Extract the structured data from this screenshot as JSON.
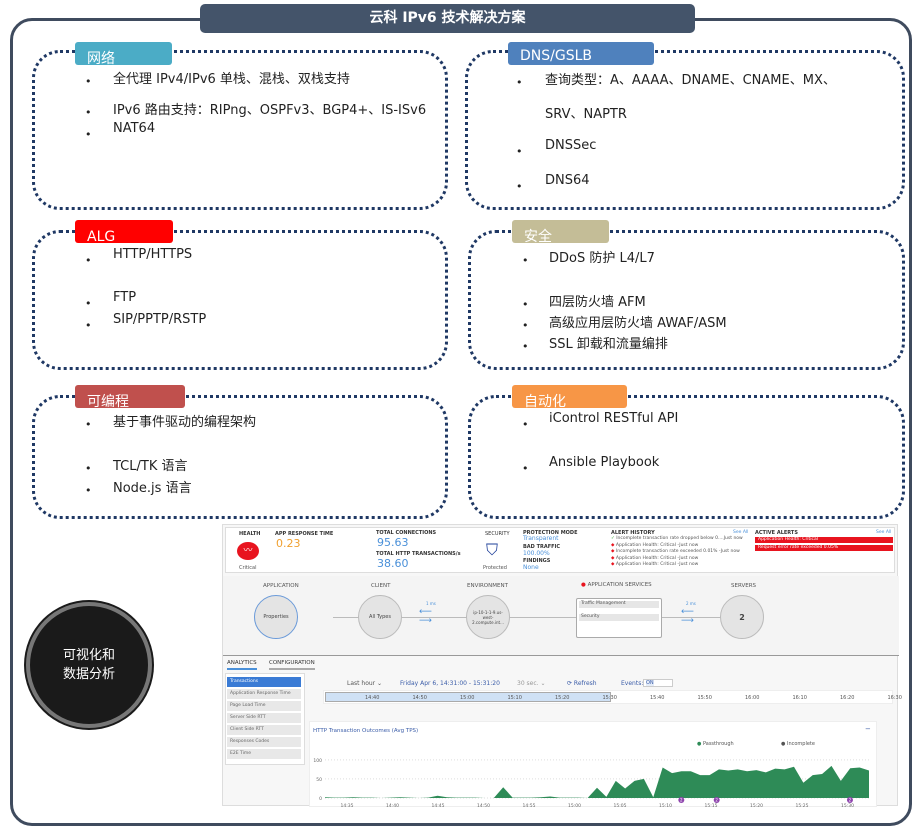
{
  "title": "云科 IPv6 技术解决方案",
  "panels": {
    "network": {
      "tag": "网络",
      "color": "#4bacc6",
      "items": [
        "全代理 IPv4/IPv6 单栈、混栈、双栈支持",
        "IPv6 路由支持：RIPng、OSPFv3、BGP4+、IS-ISv6",
        "NAT64"
      ]
    },
    "dns": {
      "tag": "DNS/GSLB",
      "color": "#4f81bd",
      "items": [
        "查询类型：A、AAAA、DNAME、CNAME、MX、",
        "SRV、NAPTR",
        "DNSSec",
        "DNS64"
      ]
    },
    "alg": {
      "tag": "ALG",
      "color": "#ff0000",
      "items": [
        "HTTP/HTTPS",
        "FTP",
        "SIP/PPTP/RSTP"
      ]
    },
    "security": {
      "tag": "安全",
      "color": "#c4bd97",
      "items": [
        "DDoS 防护 L4/L7",
        "四层防火墙 AFM",
        "高级应用层防火墙 AWAF/ASM",
        "SSL 卸载和流量编排"
      ]
    },
    "programmable": {
      "tag": "可编程",
      "color": "#c0504d",
      "items": [
        "基于事件驱动的编程架构",
        "TCL/TK 语言",
        "Node.js 语言"
      ]
    },
    "automation": {
      "tag": "自动化",
      "color": "#f79646",
      "items": [
        "iControl RESTful API",
        "Ansible Playbook"
      ]
    }
  },
  "circle_label": "可视化和数据分析",
  "dashboard": {
    "health": {
      "label": "HEALTH",
      "status": "Critical"
    },
    "app_response": {
      "label": "APP RESPONSE TIME",
      "value": "0.23"
    },
    "connections": {
      "label": "TOTAL CONNECTIONS",
      "value": "95.63"
    },
    "http_tx": {
      "label": "TOTAL HTTP TRANSACTIONS/s",
      "value": "38.60"
    },
    "security": {
      "label": "SECURITY",
      "status": "Protected"
    },
    "protection": {
      "mode_label": "PROTECTION MODE",
      "mode": "Transparent",
      "bad_label": "BAD TRAFFIC",
      "bad": "100.00%",
      "findings_label": "FINDINGS",
      "findings": "None"
    },
    "alert_history": {
      "label": "ALERT HISTORY",
      "see_all": "See All",
      "items": [
        "Incomplete transaction rate dropped below 0....Just now",
        "Application Health: Critical -Just now",
        "Incomplete transaction rate exceeded 0.01% -Just now",
        "Application Health: Critical -Just now",
        "Application Health: Critical -Just now"
      ]
    },
    "active_alerts": {
      "label": "ACTIVE ALERTS",
      "see_all": "See All",
      "items": [
        "Application Health: Critical",
        "Request error rate exceeded 0.05%"
      ]
    },
    "topology": {
      "application": "APPLICATION",
      "properties": "Properties",
      "client": "CLIENT",
      "all_types": "All Types",
      "environment": "ENVIRONMENT",
      "env_node": "ip-10-1-1-9.us-west-2.compute.int...",
      "app_services": "APPLICATION SERVICES",
      "traffic": "Traffic Management",
      "security": "Security",
      "servers": "SERVERS",
      "server_count": "2",
      "latency_client": "1 ms",
      "latency_server": "2 ms"
    },
    "tabs": [
      "ANALYTICS",
      "CONFIGURATION"
    ],
    "menu": [
      "Transactions",
      "Application Response Time",
      "Page Load Time",
      "Server Side RTT",
      "Client Side RTT",
      "Responses Codes",
      "E2E Time"
    ],
    "controls": {
      "range": "Last hour ⌄",
      "dates": "Friday Apr 6, 14:31:00 - 15:31:20",
      "interval": "30 sec. ⌄",
      "refresh": "⟳ Refresh",
      "events": "Events:",
      "events_state": "ON"
    },
    "timeline": [
      "14:40",
      "14:50",
      "15:00",
      "15:10",
      "15:20",
      "15:30",
      "15:40",
      "15:50",
      "16:00",
      "16:10",
      "16:20",
      "16:30"
    ],
    "accent": "#4a90d9"
  },
  "chart_data": {
    "type": "area",
    "title": "HTTP Transaction Outcomes (Avg TPS)",
    "legend": [
      "Passthrough",
      "Incomplete"
    ],
    "legend_colors": [
      "#2e8b57",
      "#222222"
    ],
    "x_ticks": [
      "14:35",
      "14:40",
      "14:45",
      "14:50",
      "14:55",
      "15:00",
      "15:05",
      "15:10",
      "15:15",
      "15:20",
      "15:25",
      "15:30"
    ],
    "y_ticks": [
      0,
      50,
      100
    ],
    "ylim": [
      0,
      110
    ],
    "series": [
      {
        "name": "Passthrough",
        "values": [
          2,
          1,
          1,
          2,
          1,
          1,
          0,
          1,
          2,
          1,
          0,
          1,
          6,
          2,
          1,
          1,
          1,
          0,
          0,
          28,
          1,
          1,
          1,
          2,
          4,
          1,
          1,
          1,
          0,
          27,
          3,
          45,
          25,
          45,
          50,
          2,
          80,
          65,
          70,
          70,
          60,
          60,
          75,
          72,
          75,
          70,
          73,
          67,
          77,
          75,
          82,
          40,
          60,
          63,
          84,
          45,
          78,
          80,
          72
        ]
      }
    ],
    "event_markers": [
      "2",
      "2",
      "2"
    ]
  }
}
